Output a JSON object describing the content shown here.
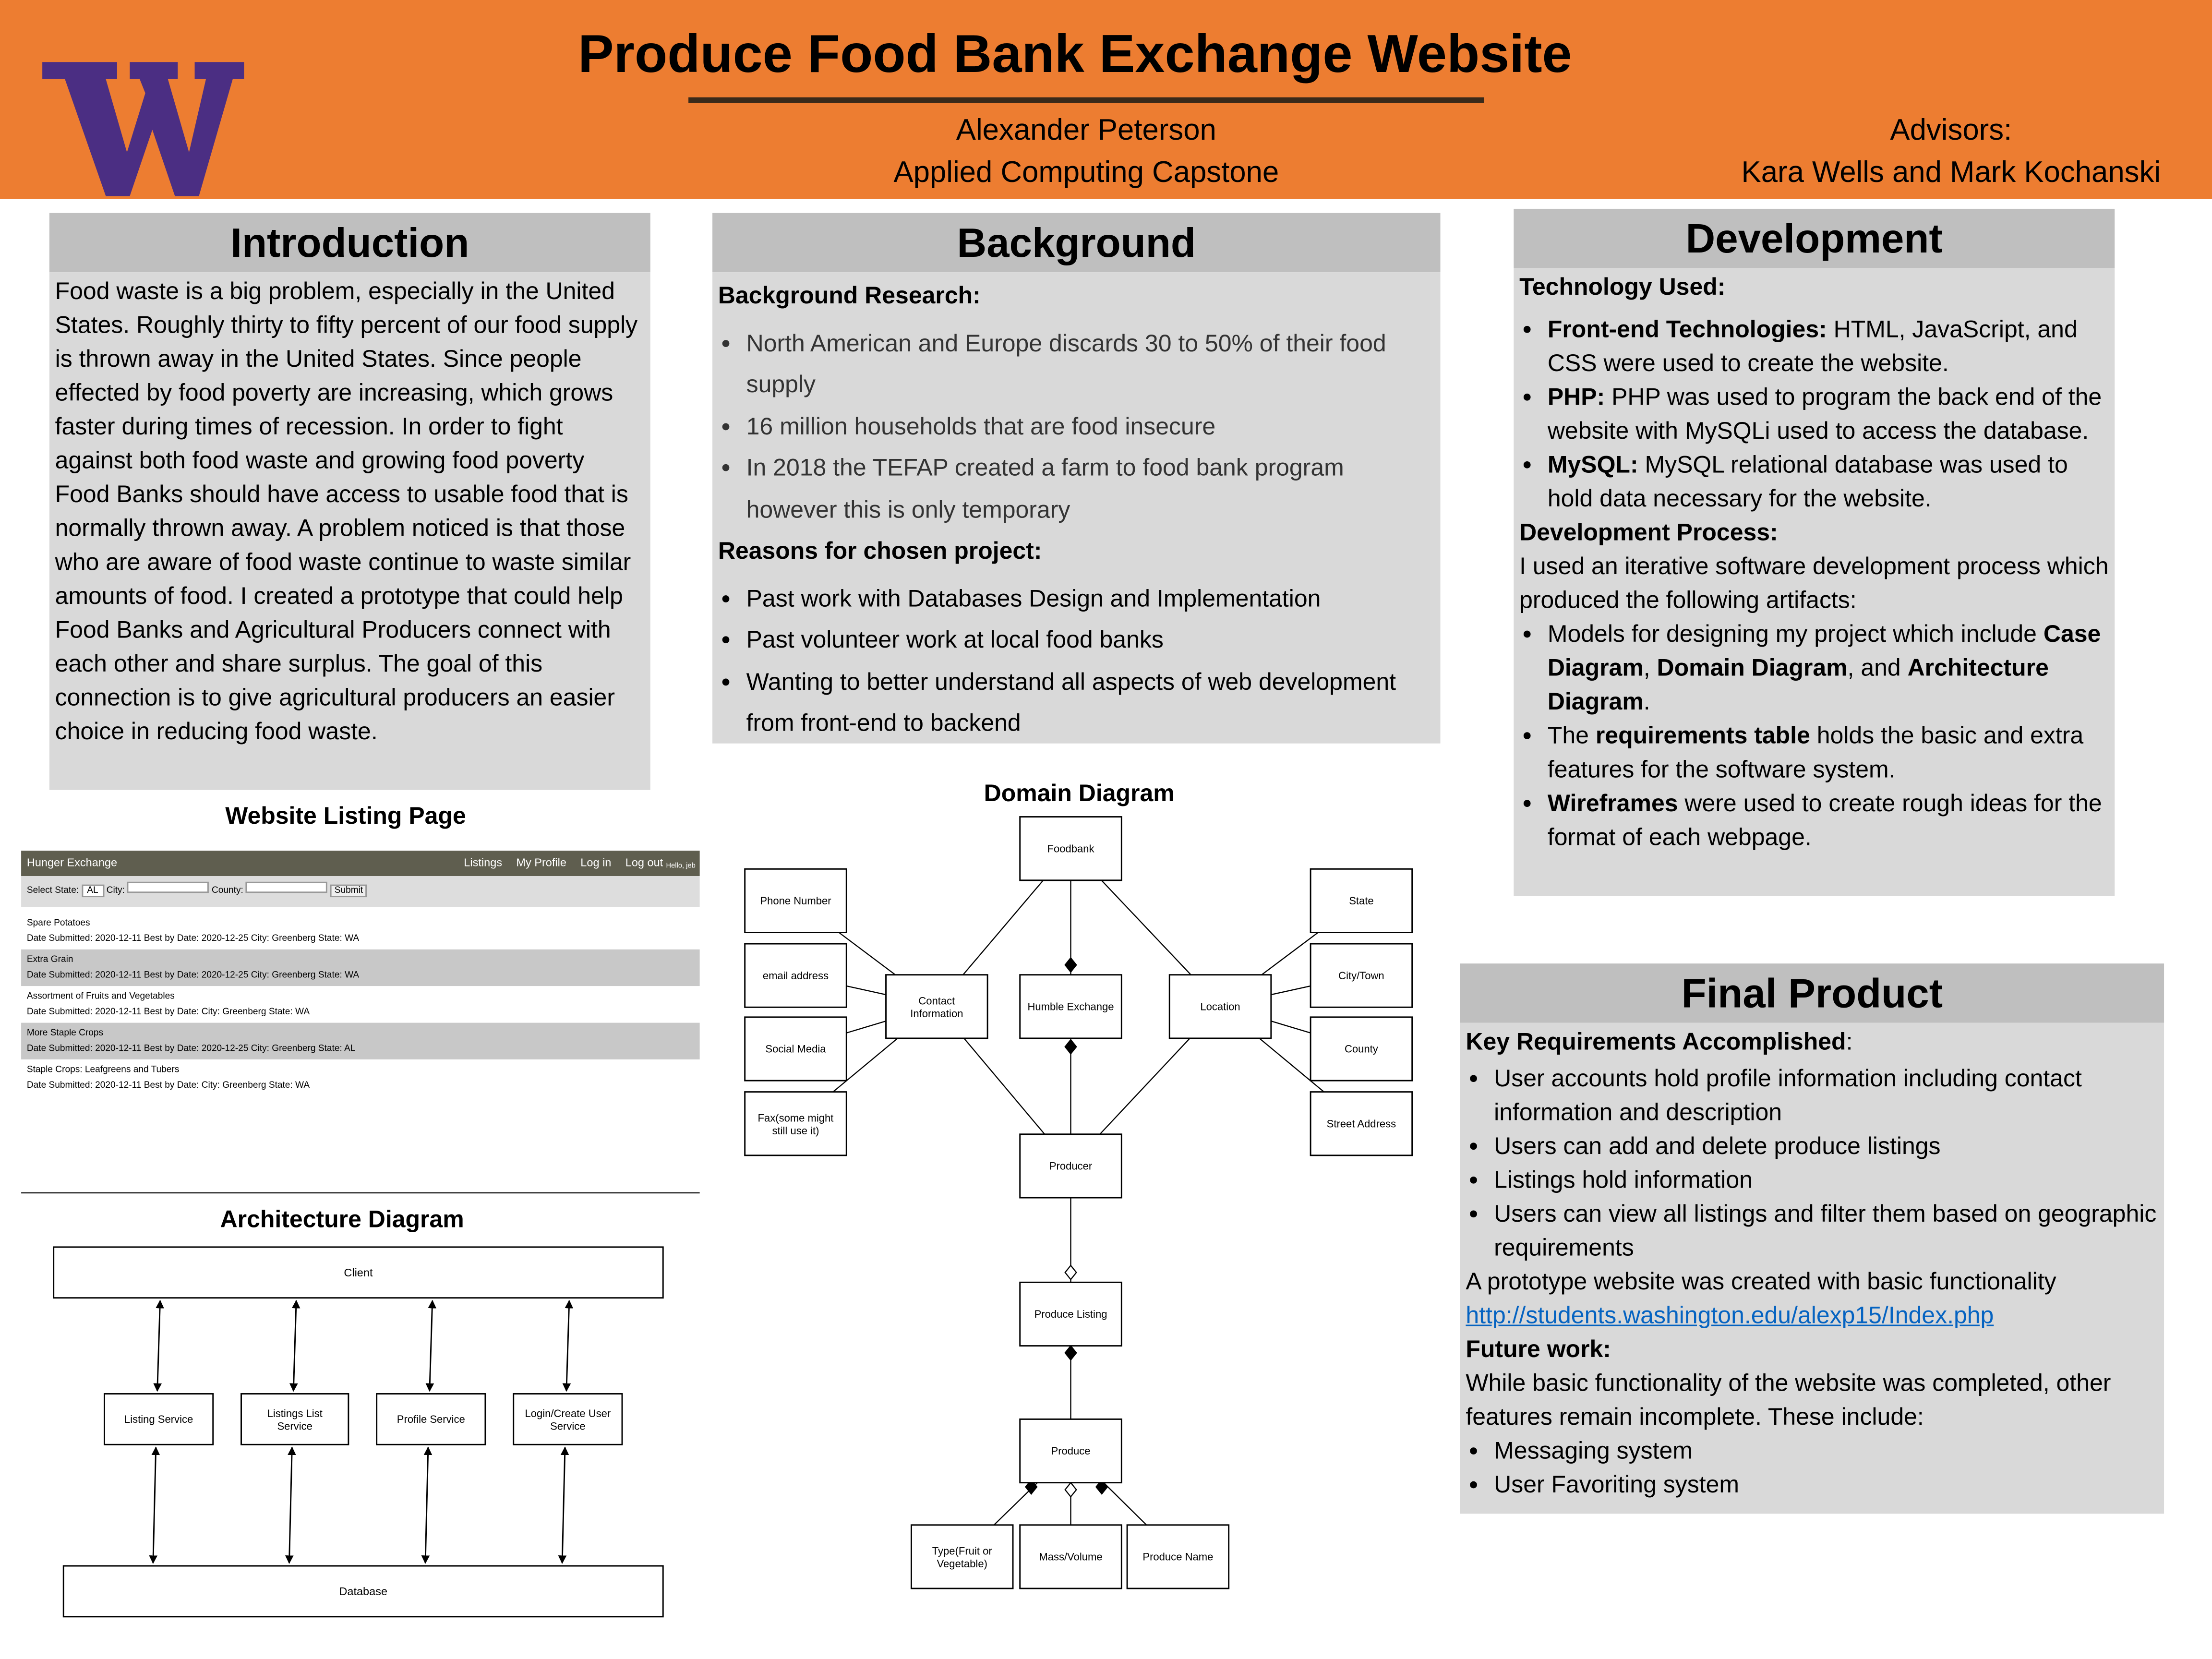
{
  "header": {
    "title": "Produce Food Bank Exchange Website",
    "author": "Alexander Peterson",
    "program": "Applied Computing Capstone",
    "advisors_label": "Advisors:",
    "advisors": "Kara Wells and Mark Kochanski"
  },
  "introduction": {
    "heading": "Introduction",
    "text": "Food waste is a big problem, especially in the United States. Roughly thirty to fifty percent of our food supply is thrown away in the United States. Since people effected by food poverty are increasing, which grows faster during times of recession. In order to fight against both food waste and growing food poverty Food Banks should have access to usable food that is normally thrown away. A problem noticed is that those who are aware of food waste continue to waste similar amounts of food. I created a prototype that could help Food Banks and Agricultural Producers connect with each other and share surplus. The goal of this connection is to give agricultural producers an easier choice in reducing food waste."
  },
  "background": {
    "heading": "Background",
    "research_label": "Background Research:",
    "research_items": [
      "North American and Europe discards 30 to 50% of their food supply",
      "16 million households that are food insecure",
      "In 2018 the TEFAP created a farm to food bank program however this is only temporary"
    ],
    "reasons_label": "Reasons for chosen project:",
    "reasons_items": [
      "Past work with Databases Design and Implementation",
      "Past volunteer work at local food banks",
      "Wanting to better understand all aspects of web development from front-end to backend"
    ]
  },
  "development": {
    "heading": "Development",
    "technology_label": "Technology Used:",
    "technology_items": [
      [
        {
          "bold": "Front-end Technologies:"
        },
        {
          "text": " HTML, JavaScript, and CSS were used to create the website."
        }
      ],
      [
        {
          "bold": "PHP:"
        },
        {
          "text": " PHP was used to program the back end of the website with MySQLi used to access the database."
        }
      ],
      [
        {
          "bold": "MySQL:"
        },
        {
          "text": " MySQL relational database was used to hold data necessary for the website."
        }
      ]
    ],
    "process_label": "Development Process:",
    "process_text": "I used an iterative software development process which produced the following artifacts:",
    "process_items": [
      [
        {
          "text": "Models for designing my project which include "
        },
        {
          "bold": "Case Diagram"
        },
        {
          "text": ", "
        },
        {
          "bold": "Domain Diagram"
        },
        {
          "text": ", and "
        },
        {
          "bold": "Architecture Diagram"
        },
        {
          "text": "."
        }
      ],
      [
        {
          "text": "The "
        },
        {
          "bold": "requirements table"
        },
        {
          "text": " holds the basic and extra features for the software system."
        }
      ],
      [
        {
          "bold": "Wireframes"
        },
        {
          "text": " were used to create rough ideas for the format of each webpage."
        }
      ]
    ]
  },
  "final_product": {
    "heading": "Final Product",
    "requirements_heading": [
      {
        "bold": "Key Requirements Accomplished"
      },
      {
        "text": ":"
      }
    ],
    "requirements_items": [
      "User accounts hold profile information including contact information and description",
      "Users can add and delete produce listings",
      "Listings hold information",
      "Users can view all listings and filter them based on geographic requirements"
    ],
    "prototype_text": "A prototype website was created with basic functionality",
    "link": "http://students.washington.edu/alexp15/Index.php",
    "future_label": "Future work:",
    "future_text": "While basic functionality of the website was completed, other features remain incomplete. These include:",
    "future_items": [
      "Messaging system",
      "User Favoriting system"
    ]
  },
  "listing_page": {
    "title": "Website Listing Page",
    "site_name": "Hunger Exchange",
    "nav": [
      "Listings",
      "My Profile",
      "Log in",
      "Log out"
    ],
    "greeting": "Hello, jeb",
    "state_label": "Select State:",
    "state_value": "AL",
    "city_label": "City:",
    "county_label": "County:",
    "button": "Submit",
    "listings": [
      {
        "name": "Spare Potatoes",
        "details": "Date Submitted: 2020-12-11 Best by Date: 2020-12-25 City: Greenberg State: WA"
      },
      {
        "name": "Extra Grain",
        "details": "Date Submitted: 2020-12-11 Best by Date: 2020-12-25 City: Greenberg State: WA"
      },
      {
        "name": "Assortment of Fruits and Vegetables",
        "details": "Date Submitted: 2020-12-11 Best by Date: City: Greenberg State: WA"
      },
      {
        "name": "More Staple Crops",
        "details": "Date Submitted: 2020-12-11 Best by Date: 2020-12-25 City: Greenberg State: AL"
      },
      {
        "name": "Staple Crops: Leafgreens and Tubers",
        "details": "Date Submitted: 2020-12-11 Best by Date: City: Greenberg State: WA"
      }
    ]
  },
  "architecture": {
    "title": "Architecture Diagram",
    "client": "Client",
    "services": [
      "Listing Service",
      "Listings List Service",
      "Profile Service",
      "Login/Create User Service"
    ],
    "database": "Database"
  },
  "domain": {
    "title": "Domain Diagram",
    "nodes": [
      "Foodbank",
      "Phone Number",
      "email address",
      "Social Media",
      "Fax(some might still use it)",
      "Contact Information",
      "Humble Exchange",
      "Location",
      "State",
      "City/Town",
      "County",
      "Street Address",
      "Producer",
      "Produce Listing",
      "Produce",
      "Type(Fruit or Vegetable)",
      "Mass/Volume",
      "Produce Name"
    ]
  }
}
